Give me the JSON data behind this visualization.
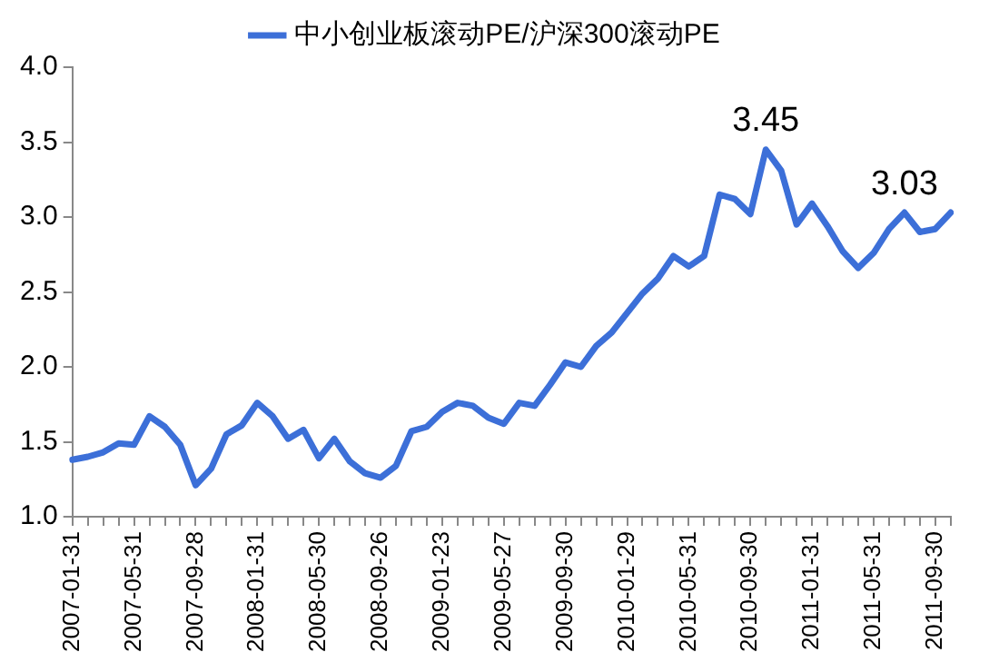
{
  "chart_data": {
    "type": "line",
    "categories": [
      "2007-01-31",
      null,
      null,
      null,
      "2007-05-31",
      null,
      null,
      null,
      "2007-09-28",
      null,
      null,
      null,
      "2008-01-31",
      null,
      null,
      null,
      "2008-05-30",
      null,
      null,
      null,
      "2008-09-26",
      null,
      null,
      null,
      "2009-01-23",
      null,
      null,
      null,
      "2009-05-27",
      null,
      null,
      null,
      "2009-09-30",
      null,
      null,
      null,
      "2010-01-29",
      null,
      null,
      null,
      "2010-05-31",
      null,
      null,
      null,
      "2010-09-30",
      null,
      null,
      null,
      "2011-01-31",
      null,
      null,
      null,
      "2011-05-31",
      null,
      null,
      null,
      "2011-09-30",
      null
    ],
    "series": [
      {
        "name": "中小创业板滚动PE/沪深300滚动PE",
        "color": "#3c6fd8",
        "values": [
          1.38,
          1.4,
          1.43,
          1.49,
          1.48,
          1.67,
          1.6,
          1.48,
          1.21,
          1.32,
          1.55,
          1.61,
          1.76,
          1.67,
          1.52,
          1.58,
          1.39,
          1.52,
          1.37,
          1.29,
          1.26,
          1.34,
          1.57,
          1.6,
          1.7,
          1.76,
          1.74,
          1.66,
          1.62,
          1.76,
          1.74,
          1.88,
          2.03,
          2.0,
          2.14,
          2.23,
          2.36,
          2.49,
          2.59,
          2.74,
          2.67,
          2.74,
          3.15,
          3.12,
          3.02,
          3.45,
          3.31,
          2.95,
          3.09,
          2.94,
          2.77,
          2.66,
          2.76,
          2.92,
          3.03,
          2.9,
          2.92,
          3.03
        ],
        "value_labels": [
          null,
          null,
          null,
          null,
          null,
          null,
          null,
          null,
          null,
          null,
          null,
          null,
          null,
          null,
          null,
          null,
          null,
          null,
          null,
          null,
          null,
          null,
          null,
          null,
          null,
          null,
          null,
          null,
          null,
          null,
          null,
          null,
          null,
          null,
          null,
          null,
          null,
          null,
          null,
          null,
          null,
          null,
          null,
          null,
          null,
          "3.45",
          null,
          null,
          null,
          null,
          null,
          null,
          null,
          null,
          "3.03",
          null,
          null,
          null
        ]
      }
    ],
    "ylim": [
      1.0,
      4.0
    ],
    "yticks": [
      {
        "value": 1,
        "label": "1.0"
      },
      {
        "value": 1.5,
        "label": "1.5"
      },
      {
        "value": 2,
        "label": "2.0"
      },
      {
        "value": 2.5,
        "label": "2.5"
      },
      {
        "value": 3,
        "label": "3.0"
      },
      {
        "value": 3.5,
        "label": "3.5"
      },
      {
        "value": 4,
        "label": "4.0"
      }
    ],
    "legend": "top",
    "marker": "none",
    "line_style": "solid"
  }
}
